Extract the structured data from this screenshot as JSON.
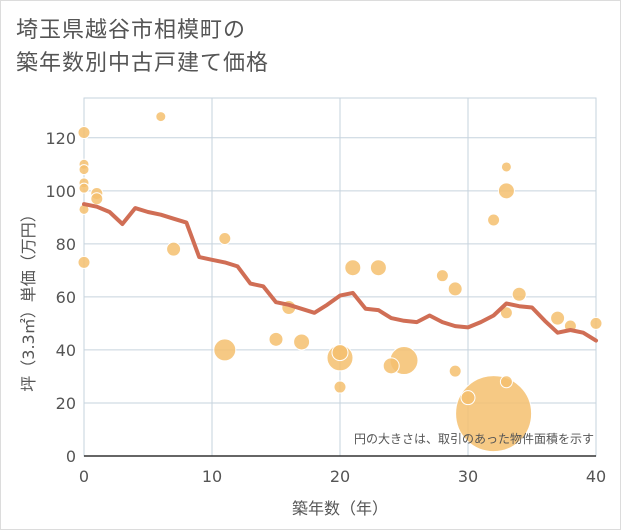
{
  "title_line1": "埼玉県越谷市相模町の",
  "title_line2": "築年数別中古戸建て価格",
  "chart_data": {
    "type": "scatter",
    "xlabel": "築年数（年）",
    "ylabel": "坪（3.3㎡）単価（万円）",
    "xlim": [
      0,
      40
    ],
    "ylim": [
      0,
      135
    ],
    "xticks": [
      0,
      10,
      20,
      30,
      40
    ],
    "yticks": [
      0,
      20,
      40,
      60,
      80,
      100,
      120
    ],
    "grid": true,
    "annotation": "円の大きさは、取引のあった物件面積を示す",
    "colors": {
      "point": "#f5c06f",
      "point_stroke": "#ffffff",
      "line": "#d06e55",
      "grid": "#c6d3de",
      "axis": "#333333",
      "frame": "#dcdcdc"
    },
    "scatter": [
      {
        "x": 0,
        "y": 122,
        "size": 6
      },
      {
        "x": 0,
        "y": 110,
        "size": 5
      },
      {
        "x": 0,
        "y": 108,
        "size": 5
      },
      {
        "x": 0,
        "y": 103,
        "size": 5
      },
      {
        "x": 0,
        "y": 101,
        "size": 5
      },
      {
        "x": 0,
        "y": 93,
        "size": 5
      },
      {
        "x": 0,
        "y": 73,
        "size": 6
      },
      {
        "x": 1,
        "y": 99,
        "size": 6
      },
      {
        "x": 1,
        "y": 97,
        "size": 6
      },
      {
        "x": 6,
        "y": 128,
        "size": 5
      },
      {
        "x": 7,
        "y": 78,
        "size": 7
      },
      {
        "x": 11,
        "y": 82,
        "size": 6
      },
      {
        "x": 11,
        "y": 40,
        "size": 11
      },
      {
        "x": 15,
        "y": 44,
        "size": 7
      },
      {
        "x": 16,
        "y": 56,
        "size": 7
      },
      {
        "x": 17,
        "y": 43,
        "size": 8
      },
      {
        "x": 20,
        "y": 39,
        "size": 8
      },
      {
        "x": 20,
        "y": 37,
        "size": 13
      },
      {
        "x": 20,
        "y": 26,
        "size": 6
      },
      {
        "x": 21,
        "y": 71,
        "size": 8
      },
      {
        "x": 23,
        "y": 71,
        "size": 8
      },
      {
        "x": 24,
        "y": 34,
        "size": 8
      },
      {
        "x": 25,
        "y": 36,
        "size": 14
      },
      {
        "x": 28,
        "y": 68,
        "size": 6
      },
      {
        "x": 29,
        "y": 63,
        "size": 7
      },
      {
        "x": 29,
        "y": 32,
        "size": 6
      },
      {
        "x": 30,
        "y": 22,
        "size": 7
      },
      {
        "x": 32,
        "y": 16,
        "size": 38
      },
      {
        "x": 32,
        "y": 89,
        "size": 6
      },
      {
        "x": 33,
        "y": 109,
        "size": 5
      },
      {
        "x": 33,
        "y": 100,
        "size": 8
      },
      {
        "x": 33,
        "y": 54,
        "size": 6
      },
      {
        "x": 33,
        "y": 28,
        "size": 6
      },
      {
        "x": 34,
        "y": 61,
        "size": 7
      },
      {
        "x": 37,
        "y": 52,
        "size": 7
      },
      {
        "x": 38,
        "y": 49,
        "size": 6
      },
      {
        "x": 40,
        "y": 50,
        "size": 6
      }
    ],
    "trend": [
      {
        "x": 0,
        "y": 95
      },
      {
        "x": 1,
        "y": 94
      },
      {
        "x": 2,
        "y": 92
      },
      {
        "x": 3,
        "y": 87.5
      },
      {
        "x": 4,
        "y": 93.5
      },
      {
        "x": 5,
        "y": 92
      },
      {
        "x": 6,
        "y": 91
      },
      {
        "x": 7,
        "y": 89.5
      },
      {
        "x": 8,
        "y": 88
      },
      {
        "x": 9,
        "y": 75
      },
      {
        "x": 10,
        "y": 74
      },
      {
        "x": 11,
        "y": 73
      },
      {
        "x": 12,
        "y": 71.5
      },
      {
        "x": 13,
        "y": 65
      },
      {
        "x": 14,
        "y": 64
      },
      {
        "x": 15,
        "y": 58
      },
      {
        "x": 16,
        "y": 57
      },
      {
        "x": 17,
        "y": 55.5
      },
      {
        "x": 18,
        "y": 54
      },
      {
        "x": 19,
        "y": 57
      },
      {
        "x": 20,
        "y": 60.5
      },
      {
        "x": 21,
        "y": 61.5
      },
      {
        "x": 22,
        "y": 55.5
      },
      {
        "x": 23,
        "y": 55
      },
      {
        "x": 24,
        "y": 52
      },
      {
        "x": 25,
        "y": 51
      },
      {
        "x": 26,
        "y": 50.5
      },
      {
        "x": 27,
        "y": 53
      },
      {
        "x": 28,
        "y": 50.5
      },
      {
        "x": 29,
        "y": 49
      },
      {
        "x": 30,
        "y": 48.5
      },
      {
        "x": 31,
        "y": 50.5
      },
      {
        "x": 32,
        "y": 53
      },
      {
        "x": 33,
        "y": 57.5
      },
      {
        "x": 34,
        "y": 56.5
      },
      {
        "x": 35,
        "y": 56
      },
      {
        "x": 36,
        "y": 51
      },
      {
        "x": 37,
        "y": 46.5
      },
      {
        "x": 38,
        "y": 47.5
      },
      {
        "x": 39,
        "y": 46.5
      },
      {
        "x": 40,
        "y": 43.5
      }
    ]
  }
}
